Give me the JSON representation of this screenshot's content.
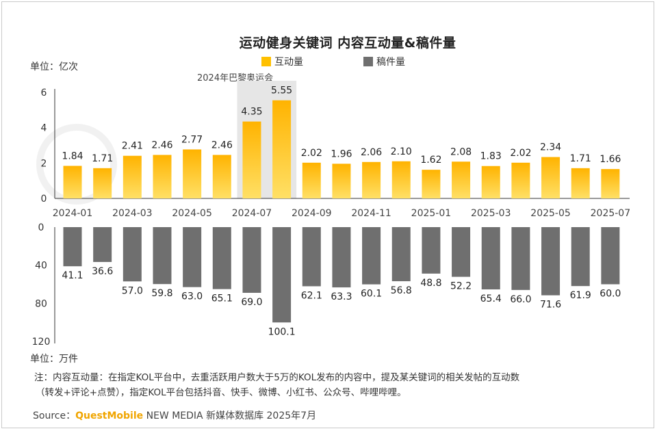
{
  "chart_data": {
    "type": "bar",
    "title": "运动健身关键词 内容互动量&稿件量",
    "categories": [
      "2024-01",
      "2024-02",
      "2024-03",
      "2024-04",
      "2024-05",
      "2024-06",
      "2024-07",
      "2024-08",
      "2024-09",
      "2024-10",
      "2024-11",
      "2024-12",
      "2025-01",
      "2025-02",
      "2025-03",
      "2025-04",
      "2025-05",
      "2025-06",
      "2025-07"
    ],
    "x_tick_labels": [
      "2024-01",
      "2024-03",
      "2024-05",
      "2024-07",
      "2024-09",
      "2024-11",
      "2025-01",
      "2025-03",
      "2025-05",
      "2025-07"
    ],
    "series": [
      {
        "name": "互动量",
        "unit_label": "单位：亿次",
        "color": "#ffc000",
        "values": [
          1.84,
          1.71,
          2.41,
          2.46,
          2.77,
          2.46,
          4.35,
          5.55,
          2.02,
          1.96,
          2.06,
          2.1,
          1.62,
          2.08,
          1.83,
          2.02,
          2.34,
          1.71,
          1.66
        ],
        "value_labels": [
          "1.84",
          "1.71",
          "2.41",
          "2.46",
          "2.77",
          "2.46",
          "4.35",
          "5.55",
          "2.02",
          "1.96",
          "2.06",
          "2.10",
          "1.62",
          "2.08",
          "1.83",
          "2.02",
          "2.34",
          "1.71",
          "1.66"
        ],
        "ylim": [
          0,
          6
        ],
        "yticks": [
          0,
          2,
          4,
          6
        ]
      },
      {
        "name": "稿件量",
        "unit_label": "单位：万件",
        "color": "#6f6f6f",
        "values": [
          41.1,
          36.6,
          57.0,
          59.8,
          63.0,
          65.1,
          69.0,
          100.1,
          62.1,
          63.3,
          60.1,
          56.8,
          48.8,
          52.2,
          65.4,
          66.0,
          71.6,
          61.9,
          60.0
        ],
        "value_labels": [
          "41.1",
          "36.6",
          "57.0",
          "59.8",
          "63.0",
          "65.1",
          "69.0",
          "100.1",
          "62.1",
          "63.3",
          "60.1",
          "56.8",
          "48.8",
          "52.2",
          "65.4",
          "66.0",
          "71.6",
          "61.9",
          "60.0"
        ],
        "ylim": [
          0,
          120
        ],
        "yticks": [
          0,
          40,
          80,
          120
        ]
      }
    ],
    "annotation": "2024年巴黎奥运会",
    "annotation_categories": [
      "2024-07",
      "2024-08"
    ]
  },
  "unit_top": "单位：亿次",
  "unit_bottom": "单位：万件",
  "legend": [
    {
      "label": "互动量",
      "color": "#ffc000"
    },
    {
      "label": "稿件量",
      "color": "#6f6f6f"
    }
  ],
  "note_line1": "注：内容互动量：在指定KOL平台中，去重活跃用户数大于5万的KOL发布的内容中，提及某关键词的相关发帖的互动数",
  "note_line2": "（转发+评论+点赞），指定KOL平台包括抖音、快手、微博、小红书、公众号、哔哩哔哩。",
  "source_prefix": "Source：",
  "source_brand": "QuestMobile",
  "source_suffix": " NEW MEDIA 新媒体数据库 2025年7月"
}
